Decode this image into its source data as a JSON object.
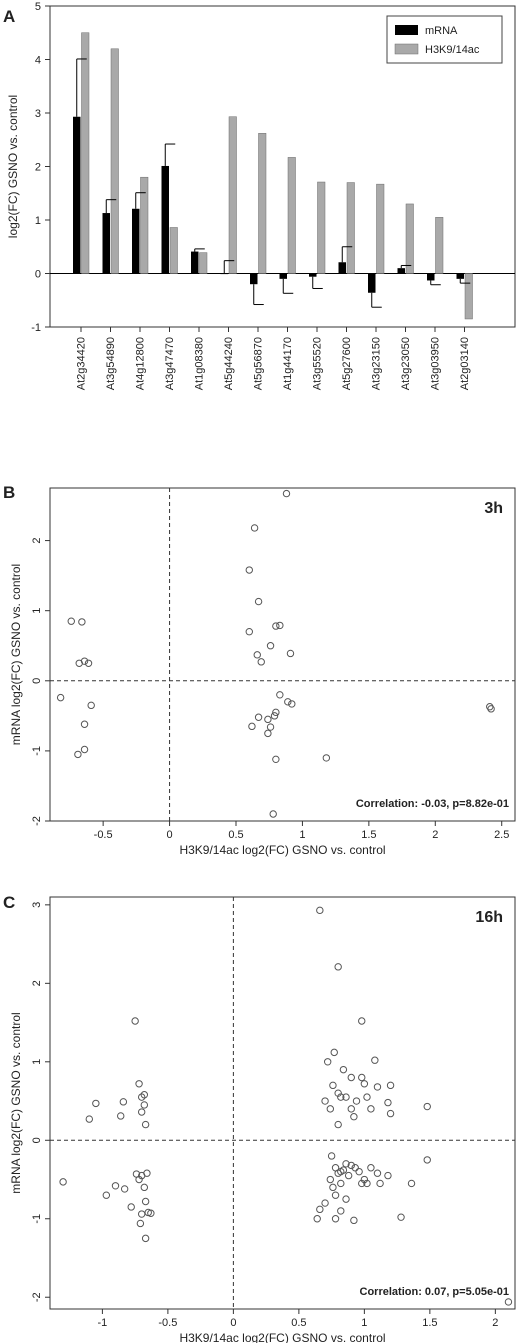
{
  "chart_data": [
    {
      "panel": "A",
      "type": "bar",
      "ylabel": "log2(FC) GSNO vs. control",
      "ylim": [
        -1,
        5
      ],
      "yticks": [
        -1,
        0,
        1,
        2,
        3,
        4,
        5
      ],
      "legend_position": "top-right",
      "categories": [
        "At2g34420",
        "At3g54890",
        "At4g12800",
        "At3g47470",
        "At1g08380",
        "At5g44240",
        "At5g56870",
        "At1g44170",
        "At3g55520",
        "At5g27600",
        "At3g23150",
        "At3g23050",
        "At3g03950",
        "At2g03140"
      ],
      "series": [
        {
          "name": "mRNA",
          "color": "#000000",
          "values": [
            2.93,
            1.13,
            1.21,
            2.01,
            0.41,
            0.0,
            -0.2,
            -0.1,
            -0.06,
            0.21,
            -0.36,
            0.1,
            -0.13,
            -0.1
          ],
          "error": [
            1.08,
            0.25,
            0.3,
            0.41,
            0.05,
            0.24,
            0.38,
            0.27,
            0.22,
            0.29,
            0.27,
            0.05,
            0.08,
            0.08
          ]
        },
        {
          "name": "H3K9/14ac",
          "color": "#a9a9a9",
          "values": [
            4.5,
            4.2,
            1.8,
            0.86,
            0.39,
            2.93,
            2.62,
            2.17,
            1.71,
            1.7,
            1.67,
            1.3,
            1.05,
            -0.85
          ]
        }
      ]
    },
    {
      "panel": "B",
      "type": "scatter",
      "annotation_label": "3h",
      "correlation_text": "Correlation: -0.03, p=8.82e-01",
      "xlabel": "H3K9/14ac log2(FC) GSNO vs. control",
      "ylabel": "mRNA log2(FC) GSNO vs. control",
      "xlim": [
        -0.9,
        2.6
      ],
      "ylim": [
        -2.0,
        2.75
      ],
      "xticks": [
        -0.5,
        0.0,
        0.5,
        1.0,
        1.5,
        2.0,
        2.5
      ],
      "yticks": [
        -2,
        -1,
        0,
        1,
        2
      ],
      "reference_lines": {
        "x": 0,
        "y": 0
      },
      "points": [
        [
          -0.82,
          -0.24
        ],
        [
          -0.74,
          0.85
        ],
        [
          -0.68,
          0.25
        ],
        [
          -0.66,
          0.84
        ],
        [
          -0.64,
          0.28
        ],
        [
          -0.61,
          0.25
        ],
        [
          -0.59,
          -0.35
        ],
        [
          -0.64,
          -0.62
        ],
        [
          -0.69,
          -1.05
        ],
        [
          -0.64,
          -0.98
        ],
        [
          0.6,
          1.58
        ],
        [
          0.64,
          2.18
        ],
        [
          0.67,
          1.13
        ],
        [
          0.6,
          0.7
        ],
        [
          0.66,
          0.37
        ],
        [
          0.69,
          0.27
        ],
        [
          0.76,
          0.5
        ],
        [
          0.8,
          0.78
        ],
        [
          0.83,
          0.79
        ],
        [
          0.91,
          0.39
        ],
        [
          0.88,
          2.67
        ],
        [
          0.62,
          -0.65
        ],
        [
          0.67,
          -0.52
        ],
        [
          0.74,
          -0.55
        ],
        [
          0.76,
          -0.66
        ],
        [
          0.74,
          -0.75
        ],
        [
          0.79,
          -0.5
        ],
        [
          0.8,
          -0.45
        ],
        [
          0.83,
          -0.2
        ],
        [
          0.89,
          -0.3
        ],
        [
          0.92,
          -0.33
        ],
        [
          0.8,
          -1.12
        ],
        [
          0.78,
          -1.9
        ],
        [
          1.18,
          -1.1
        ],
        [
          2.41,
          -0.37
        ],
        [
          2.42,
          -0.4
        ]
      ]
    },
    {
      "panel": "C",
      "type": "scatter",
      "annotation_label": "16h",
      "correlation_text": "Correlation: 0.07, p=5.05e-01",
      "xlabel": "H3K9/14ac log2(FC) GSNO vs. control",
      "ylabel": "mRNA log2(FC) GSNO vs. control",
      "xlim": [
        -1.4,
        2.15
      ],
      "ylim": [
        -2.15,
        3.1
      ],
      "xticks": [
        -1.0,
        -0.5,
        0.0,
        0.5,
        1.0,
        1.5,
        2.0
      ],
      "yticks": [
        -2,
        -1,
        0,
        1,
        2,
        3
      ],
      "reference_lines": {
        "x": 0,
        "y": 0
      },
      "points": [
        [
          -1.3,
          -0.53
        ],
        [
          -1.1,
          0.27
        ],
        [
          -1.05,
          0.47
        ],
        [
          -0.97,
          -0.7
        ],
        [
          -0.9,
          -0.58
        ],
        [
          -0.86,
          0.31
        ],
        [
          -0.84,
          0.49
        ],
        [
          -0.83,
          -0.62
        ],
        [
          -0.78,
          -0.85
        ],
        [
          -0.75,
          1.52
        ],
        [
          -0.72,
          0.72
        ],
        [
          -0.7,
          0.55
        ],
        [
          -0.68,
          0.58
        ],
        [
          -0.7,
          0.36
        ],
        [
          -0.68,
          0.45
        ],
        [
          -0.67,
          0.2
        ],
        [
          -0.74,
          -0.43
        ],
        [
          -0.72,
          -0.5
        ],
        [
          -0.7,
          -0.45
        ],
        [
          -0.66,
          -0.42
        ],
        [
          -0.68,
          -0.6
        ],
        [
          -0.67,
          -0.78
        ],
        [
          -0.7,
          -0.94
        ],
        [
          -0.65,
          -0.92
        ],
        [
          -0.63,
          -0.93
        ],
        [
          -0.71,
          -1.06
        ],
        [
          -0.67,
          -1.25
        ],
        [
          0.66,
          2.93
        ],
        [
          0.8,
          2.21
        ],
        [
          0.98,
          1.52
        ],
        [
          0.77,
          1.12
        ],
        [
          0.72,
          1.0
        ],
        [
          1.08,
          1.02
        ],
        [
          0.84,
          0.9
        ],
        [
          0.9,
          0.8
        ],
        [
          0.98,
          0.8
        ],
        [
          1.0,
          0.72
        ],
        [
          1.1,
          0.68
        ],
        [
          1.2,
          0.7
        ],
        [
          1.48,
          0.43
        ],
        [
          0.76,
          0.7
        ],
        [
          0.8,
          0.6
        ],
        [
          0.82,
          0.55
        ],
        [
          0.86,
          0.55
        ],
        [
          0.9,
          0.4
        ],
        [
          0.94,
          0.5
        ],
        [
          1.02,
          0.55
        ],
        [
          1.05,
          0.4
        ],
        [
          1.18,
          0.48
        ],
        [
          1.2,
          0.34
        ],
        [
          0.7,
          0.5
        ],
        [
          0.74,
          0.4
        ],
        [
          0.8,
          0.2
        ],
        [
          0.92,
          0.3
        ],
        [
          0.75,
          -0.2
        ],
        [
          0.78,
          -0.35
        ],
        [
          0.8,
          -0.42
        ],
        [
          0.82,
          -0.4
        ],
        [
          0.84,
          -0.38
        ],
        [
          0.86,
          -0.3
        ],
        [
          0.9,
          -0.32
        ],
        [
          0.93,
          -0.35
        ],
        [
          0.96,
          -0.4
        ],
        [
          1.0,
          -0.5
        ],
        [
          1.05,
          -0.35
        ],
        [
          1.1,
          -0.42
        ],
        [
          1.12,
          -0.55
        ],
        [
          1.18,
          -0.45
        ],
        [
          1.36,
          -0.55
        ],
        [
          1.48,
          -0.25
        ],
        [
          0.74,
          -0.5
        ],
        [
          0.76,
          -0.6
        ],
        [
          0.78,
          -0.7
        ],
        [
          0.82,
          -0.55
        ],
        [
          0.86,
          -0.75
        ],
        [
          0.88,
          -0.45
        ],
        [
          0.98,
          -0.55
        ],
        [
          1.02,
          -0.55
        ],
        [
          0.7,
          -0.8
        ],
        [
          0.66,
          -0.88
        ],
        [
          0.64,
          -1.0
        ],
        [
          0.78,
          -1.0
        ],
        [
          0.82,
          -0.9
        ],
        [
          0.92,
          -1.02
        ],
        [
          1.28,
          -0.98
        ],
        [
          2.1,
          -2.06
        ]
      ]
    }
  ]
}
